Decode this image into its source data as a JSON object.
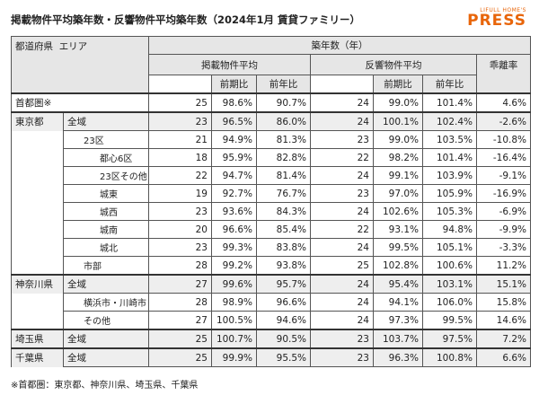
{
  "header": {
    "title": "掲載物件平均築年数・反響物件平均築年数（2024年1月 賃貸ファミリー）",
    "logo_top": "LIFULL HOME'S",
    "logo_main": "PRESS"
  },
  "table": {
    "head_pref": "都道府県",
    "head_area": "エリア",
    "head_group": "築年数（年）",
    "head_listing": "掲載物件平均",
    "head_response": "反響物件平均",
    "head_gap": "乖離率",
    "sub_headers": [
      "前期比",
      "前年比",
      "前期比",
      "前年比"
    ],
    "rows": [
      {
        "pref": "首都圏※",
        "cells": [
          "25",
          "98.6%",
          "90.7%",
          "24",
          "99.0%",
          "101.4%",
          "4.6%"
        ]
      },
      {
        "pref": "東京都",
        "area": "全域",
        "cells": [
          "23",
          "96.5%",
          "86.0%",
          "24",
          "100.1%",
          "102.4%",
          "-2.6%"
        ]
      },
      {
        "area": "23区",
        "cells": [
          "21",
          "94.9%",
          "81.3%",
          "23",
          "99.0%",
          "103.5%",
          "-10.8%"
        ]
      },
      {
        "area": "都心6区",
        "cells": [
          "18",
          "95.9%",
          "82.8%",
          "22",
          "98.2%",
          "101.4%",
          "-16.4%"
        ]
      },
      {
        "area": "23区その他",
        "cells": [
          "22",
          "94.7%",
          "81.4%",
          "24",
          "99.1%",
          "103.9%",
          "-9.1%"
        ]
      },
      {
        "area": "城東",
        "cells": [
          "19",
          "92.7%",
          "76.7%",
          "23",
          "97.0%",
          "105.9%",
          "-16.9%"
        ]
      },
      {
        "area": "城西",
        "cells": [
          "23",
          "93.6%",
          "84.3%",
          "24",
          "102.6%",
          "105.3%",
          "-6.9%"
        ]
      },
      {
        "area": "城南",
        "cells": [
          "20",
          "96.6%",
          "85.4%",
          "22",
          "93.1%",
          "94.8%",
          "-9.9%"
        ]
      },
      {
        "area": "城北",
        "cells": [
          "23",
          "99.3%",
          "83.8%",
          "24",
          "99.5%",
          "105.1%",
          "-3.3%"
        ]
      },
      {
        "area": "市部",
        "cells": [
          "28",
          "99.2%",
          "93.8%",
          "25",
          "102.8%",
          "100.6%",
          "11.2%"
        ]
      },
      {
        "pref": "神奈川県",
        "area": "全域",
        "cells": [
          "27",
          "99.6%",
          "95.7%",
          "24",
          "95.4%",
          "103.1%",
          "15.1%"
        ]
      },
      {
        "area": "横浜市・川崎市",
        "cells": [
          "28",
          "98.9%",
          "96.6%",
          "24",
          "94.1%",
          "106.0%",
          "15.8%"
        ]
      },
      {
        "area": "その他",
        "cells": [
          "27",
          "100.5%",
          "94.6%",
          "24",
          "97.3%",
          "99.5%",
          "14.6%"
        ]
      },
      {
        "pref": "埼玉県",
        "area": "全域",
        "cells": [
          "25",
          "100.7%",
          "90.5%",
          "23",
          "103.7%",
          "97.5%",
          "7.2%"
        ]
      },
      {
        "pref": "千葉県",
        "area": "全域",
        "cells": [
          "25",
          "99.9%",
          "95.5%",
          "23",
          "96.3%",
          "100.8%",
          "6.6%"
        ]
      }
    ]
  },
  "footnote": "※首都圏：東京都、神奈川県、埼玉県、千葉県"
}
